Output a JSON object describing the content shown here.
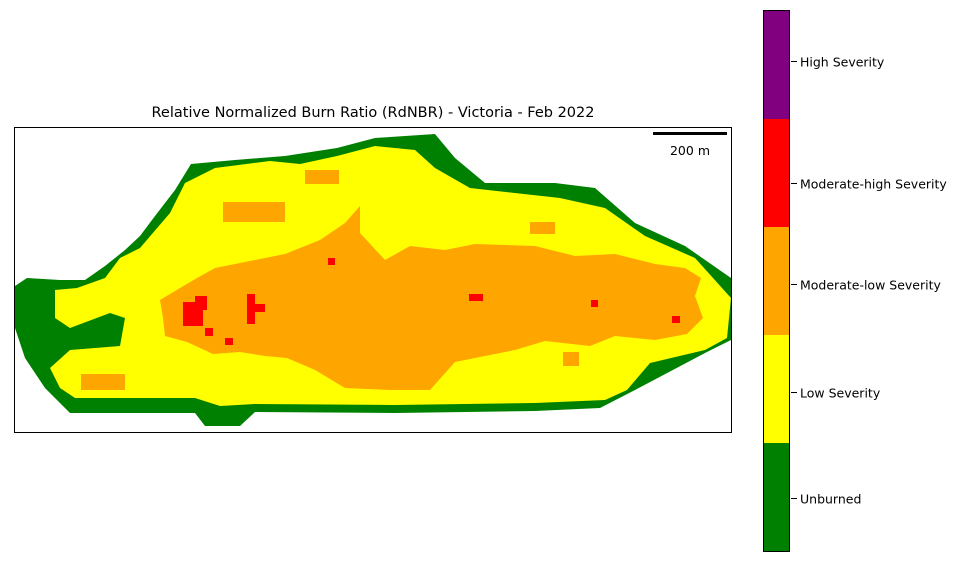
{
  "map": {
    "title": "Relative Normalized Burn Ratio (RdNBR) - Victoria - Feb 2022",
    "scale_bar_label": "200 m"
  },
  "legend": {
    "classes": [
      {
        "label": "Unburned",
        "color": "#008000"
      },
      {
        "label": "Low Severity",
        "color": "#ffff00"
      },
      {
        "label": "Moderate-low Severity",
        "color": "#ffa500"
      },
      {
        "label": "Moderate-high Severity",
        "color": "#ff0000"
      },
      {
        "label": "High Severity",
        "color": "#800080"
      }
    ]
  }
}
